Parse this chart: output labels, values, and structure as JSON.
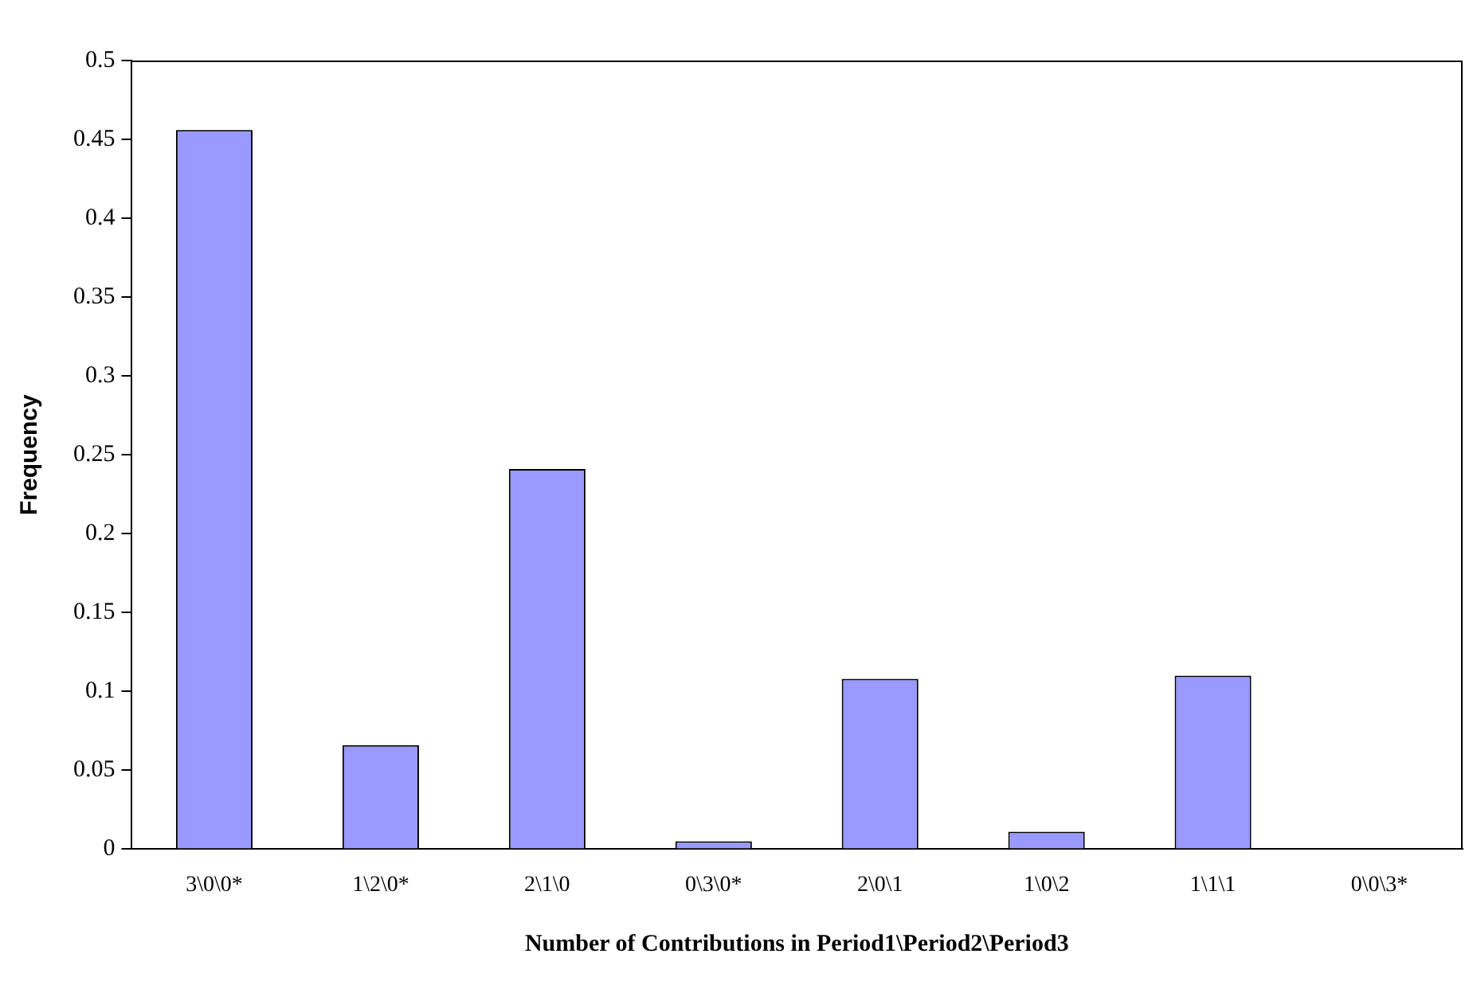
{
  "chart_data": {
    "type": "bar",
    "xlabel": "Number of Contributions in Period1\\Period2\\Period3",
    "ylabel": "Frequency",
    "categories": [
      "3\\0\\0*",
      "1\\2\\0*",
      "2\\1\\0",
      "0\\3\\0*",
      "2\\0\\1",
      "1\\0\\2",
      "1\\1\\1",
      "0\\0\\3*"
    ],
    "values": [
      0.456,
      0.066,
      0.241,
      0.005,
      0.108,
      0.011,
      0.11,
      0
    ],
    "color": "#9999ff",
    "ylim": [
      0,
      0.5
    ],
    "yticks": [
      0,
      0.05,
      0.1,
      0.15,
      0.2,
      0.25,
      0.3,
      0.35,
      0.4,
      0.45,
      0.5
    ],
    "grid": false,
    "legend": false
  }
}
